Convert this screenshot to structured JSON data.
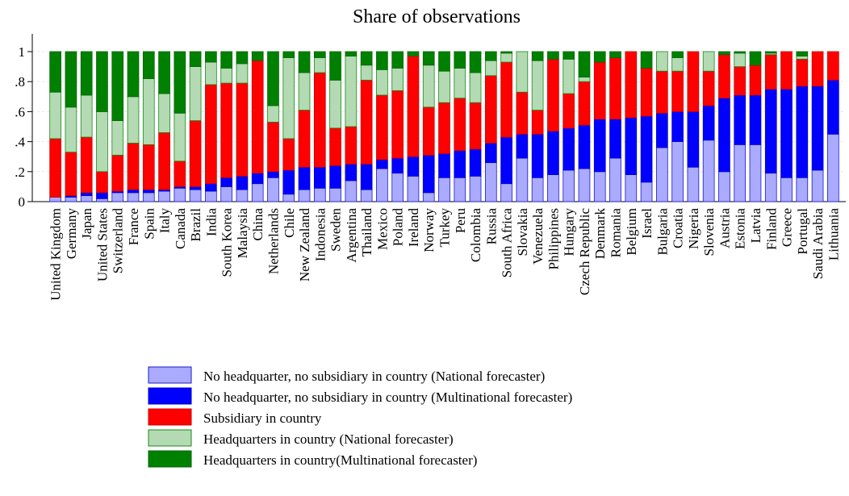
{
  "chart_data": {
    "type": "stacked_bar",
    "title": "Share of observations",
    "categories": [
      "United Kingdom",
      "Germany",
      "Japan",
      "United States",
      "Switzerland",
      "France",
      "Spain",
      "Italy",
      "Canada",
      "Brazil",
      "India",
      "South Korea",
      "Malaysia",
      "China",
      "Netherlands",
      "Chile",
      "New Zealand",
      "Indonesia",
      "Sweden",
      "Argentina",
      "Thailand",
      "Mexico",
      "Poland",
      "Ireland",
      "Norway",
      "Turkey",
      "Peru",
      "Colombia",
      "Russia",
      "South Africa",
      "Slovakia",
      "Venezuela",
      "Philippines",
      "Hungary",
      "Czech Republic",
      "Denmark",
      "Romania",
      "Belgium",
      "Israel",
      "Bulgaria",
      "Croatia",
      "Nigeria",
      "Slovenia",
      "Austria",
      "Estonia",
      "Latvia",
      "Finland",
      "Greece",
      "Portugal",
      "Saudi Arabia",
      "Lithuania"
    ],
    "series": [
      {
        "name": "No headquarter, no subsidiary in country (National forecaster)",
        "color": "#aaaaff",
        "stroke": "#1a1acc",
        "values": [
          0.03,
          0.03,
          0.04,
          0.02,
          0.06,
          0.06,
          0.06,
          0.07,
          0.09,
          0.08,
          0.07,
          0.1,
          0.08,
          0.12,
          0.16,
          0.05,
          0.08,
          0.09,
          0.09,
          0.14,
          0.08,
          0.22,
          0.19,
          0.17,
          0.06,
          0.16,
          0.16,
          0.17,
          0.26,
          0.12,
          0.29,
          0.16,
          0.18,
          0.21,
          0.22,
          0.2,
          0.29,
          0.18,
          0.13,
          0.36,
          0.4,
          0.23,
          0.41,
          0.2,
          0.38,
          0.38,
          0.19,
          0.16,
          0.16,
          0.21,
          0.45
        ]
      },
      {
        "name": "No headquarter, no subsidiary in country (Multinational forecaster)",
        "color": "#0000ff",
        "stroke": "#0000cc",
        "values": [
          0.0,
          0.01,
          0.02,
          0.04,
          0.01,
          0.02,
          0.02,
          0.01,
          0.01,
          0.02,
          0.05,
          0.06,
          0.09,
          0.07,
          0.04,
          0.16,
          0.15,
          0.14,
          0.15,
          0.11,
          0.17,
          0.06,
          0.1,
          0.13,
          0.25,
          0.16,
          0.18,
          0.18,
          0.13,
          0.31,
          0.16,
          0.29,
          0.29,
          0.28,
          0.29,
          0.35,
          0.26,
          0.38,
          0.44,
          0.23,
          0.2,
          0.37,
          0.23,
          0.49,
          0.33,
          0.33,
          0.56,
          0.59,
          0.61,
          0.56,
          0.36
        ]
      },
      {
        "name": "Subsidiary in country",
        "color": "#ff0000",
        "stroke": "#cc0000",
        "values": [
          0.39,
          0.29,
          0.37,
          0.14,
          0.24,
          0.31,
          0.3,
          0.38,
          0.17,
          0.44,
          0.66,
          0.63,
          0.62,
          0.75,
          0.33,
          0.21,
          0.38,
          0.63,
          0.25,
          0.25,
          0.56,
          0.43,
          0.45,
          0.67,
          0.32,
          0.34,
          0.35,
          0.31,
          0.45,
          0.5,
          0.28,
          0.16,
          0.48,
          0.23,
          0.29,
          0.38,
          0.41,
          0.44,
          0.32,
          0.28,
          0.27,
          0.4,
          0.23,
          0.29,
          0.19,
          0.2,
          0.23,
          0.25,
          0.18,
          0.23,
          0.19
        ]
      },
      {
        "name": "Headquarters in country (National forecaster)",
        "color": "#b3dab3",
        "stroke": "#1a8a1a",
        "values": [
          0.31,
          0.3,
          0.28,
          0.4,
          0.23,
          0.31,
          0.44,
          0.26,
          0.32,
          0.36,
          0.15,
          0.1,
          0.13,
          0.0,
          0.11,
          0.54,
          0.25,
          0.1,
          0.32,
          0.47,
          0.1,
          0.17,
          0.15,
          0.0,
          0.28,
          0.21,
          0.2,
          0.2,
          0.1,
          0.06,
          0.27,
          0.33,
          0.0,
          0.23,
          0.03,
          0.0,
          0.0,
          0.0,
          0.0,
          0.13,
          0.09,
          0.0,
          0.13,
          0.0,
          0.09,
          0.0,
          0.01,
          0.0,
          0.02,
          0.0,
          0.0
        ]
      },
      {
        "name": "Headquarters in country(Multinational forecaster)",
        "color": "#008000",
        "stroke": "#006600",
        "values": [
          0.27,
          0.37,
          0.29,
          0.4,
          0.46,
          0.3,
          0.18,
          0.28,
          0.41,
          0.1,
          0.07,
          0.11,
          0.08,
          0.06,
          0.36,
          0.04,
          0.14,
          0.04,
          0.19,
          0.03,
          0.09,
          0.12,
          0.11,
          0.03,
          0.09,
          0.13,
          0.11,
          0.14,
          0.06,
          0.01,
          0.0,
          0.06,
          0.05,
          0.05,
          0.17,
          0.07,
          0.04,
          0.0,
          0.11,
          0.0,
          0.04,
          0.0,
          0.0,
          0.02,
          0.01,
          0.09,
          0.01,
          0.0,
          0.03,
          0.0,
          0.0
        ]
      }
    ],
    "ylim": [
      0,
      1
    ],
    "yticks": [
      0,
      {
        "value": 0.2,
        "label": ".2"
      },
      {
        "value": 0.4,
        "label": ".4"
      },
      {
        "value": 0.6,
        "label": ".6"
      },
      {
        "value": 0.8,
        "label": ".8"
      },
      1
    ],
    "grid": true
  }
}
